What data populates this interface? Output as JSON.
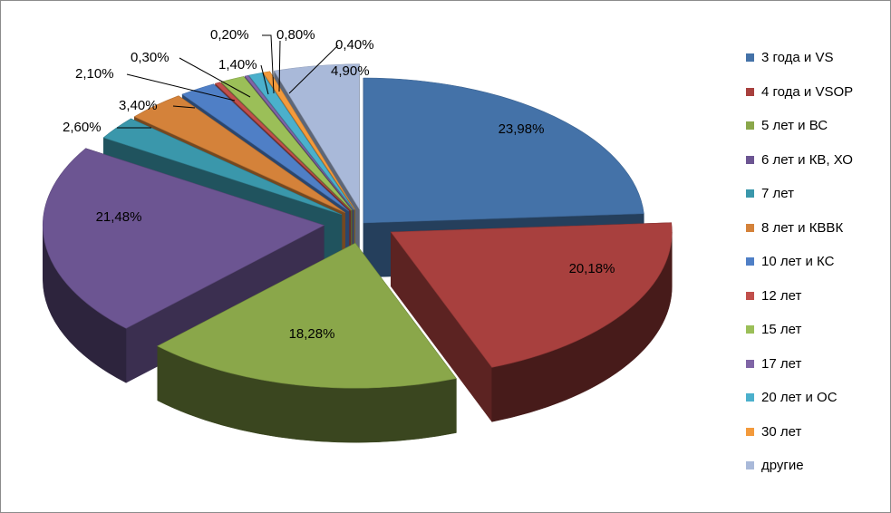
{
  "chart_data": {
    "type": "pie",
    "title": "",
    "legend_position": "right",
    "series": [
      {
        "name": "3 года и VS",
        "value": 23.98,
        "label": "23,98%",
        "color": "#4472a8"
      },
      {
        "name": "4 года и VSOP",
        "value": 20.18,
        "label": "20,18%",
        "color": "#a8403e"
      },
      {
        "name": "5 лет и ВС",
        "value": 18.28,
        "label": "18,28%",
        "color": "#8aa74a"
      },
      {
        "name": "6 лет и КВ, ХО",
        "value": 21.48,
        "label": "21,48%",
        "color": "#6c5592"
      },
      {
        "name": "7 лет",
        "value": 2.6,
        "label": "2,60%",
        "color": "#3a97ab"
      },
      {
        "name": "8 лет и КВВК",
        "value": 3.4,
        "label": "3,40%",
        "color": "#d4823a"
      },
      {
        "name": "10 лет и КС",
        "value": 2.1,
        "label": "2,10%",
        "color": "#4f7fc6"
      },
      {
        "name": "12 лет",
        "value": 0.3,
        "label": "0,30%",
        "color": "#c14f4b"
      },
      {
        "name": "15 лет",
        "value": 1.4,
        "label": "1,40%",
        "color": "#9bbf58"
      },
      {
        "name": "17 лет",
        "value": 0.2,
        "label": "0,20%",
        "color": "#8065a6"
      },
      {
        "name": "20 лет и ОС",
        "value": 0.8,
        "label": "0,80%",
        "color": "#4bb0cc"
      },
      {
        "name": "30 лет",
        "value": 0.4,
        "label": "0,40%",
        "color": "#f39a3c"
      },
      {
        "name": "другие",
        "value": 4.9,
        "label": "4,90%",
        "color": "#a9b9d9"
      }
    ]
  }
}
